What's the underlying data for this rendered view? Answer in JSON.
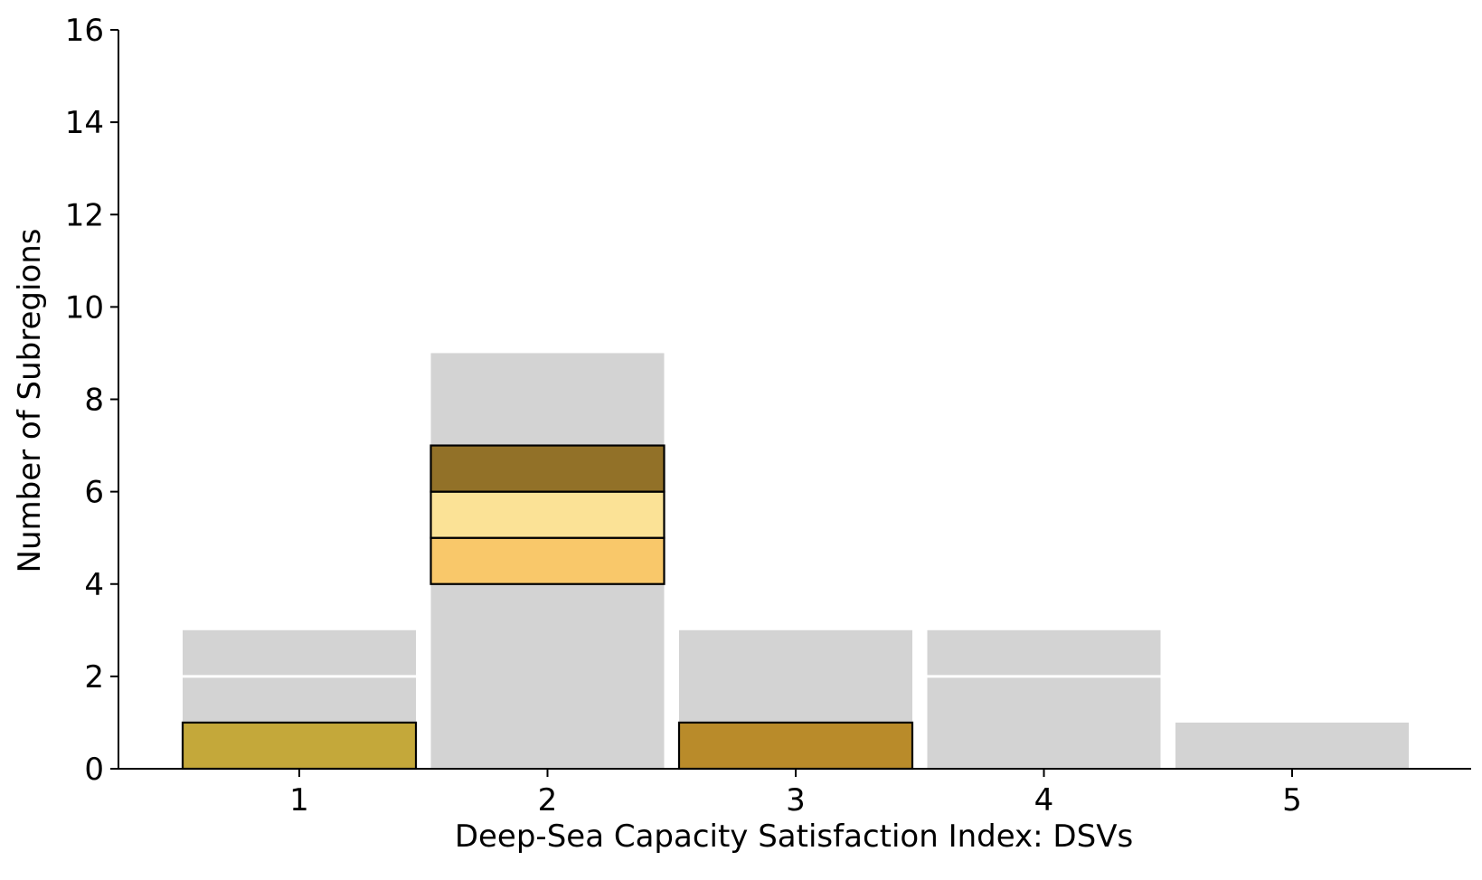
{
  "chart_data": {
    "type": "bar",
    "subtype": "stacked-histogram",
    "categories": [
      "1",
      "2",
      "3",
      "4",
      "5"
    ],
    "background_totals": [
      3,
      9,
      3,
      3,
      1
    ],
    "background_color": "#d3d3d3",
    "background_segment_dividers": [
      [
        2
      ],
      [],
      [],
      [
        2
      ],
      []
    ],
    "highlight_segments": [
      {
        "category": "1",
        "start": 0,
        "end": 1,
        "color": "#c4a83a"
      },
      {
        "category": "2",
        "start": 4,
        "end": 5,
        "color": "#f9c86a"
      },
      {
        "category": "2",
        "start": 5,
        "end": 6,
        "color": "#fbe296"
      },
      {
        "category": "2",
        "start": 6,
        "end": 7,
        "color": "#927128"
      },
      {
        "category": "3",
        "start": 0,
        "end": 1,
        "color": "#b98b2a"
      }
    ],
    "xlabel": "Deep-Sea Capacity Satisfaction Index: DSVs",
    "ylabel": "Number of Subregions",
    "ylim": [
      0,
      16
    ],
    "yticks": [
      "0",
      "2",
      "4",
      "6",
      "8",
      "10",
      "12",
      "14",
      "16"
    ],
    "grid": false,
    "legend": "none"
  }
}
